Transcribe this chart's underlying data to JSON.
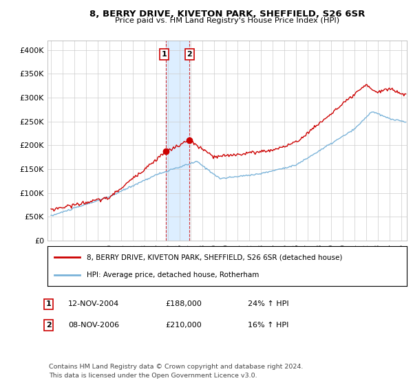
{
  "title": "8, BERRY DRIVE, KIVETON PARK, SHEFFIELD, S26 6SR",
  "subtitle": "Price paid vs. HM Land Registry's House Price Index (HPI)",
  "hpi_color": "#7ab3d9",
  "price_color": "#cc0000",
  "highlight_color": "#ddeeff",
  "sale1_date": "12-NOV-2004",
  "sale1_price": 188000,
  "sale1_hpi_pct": "24%",
  "sale2_date": "08-NOV-2006",
  "sale2_price": 210000,
  "sale2_hpi_pct": "16%",
  "legend_label1": "8, BERRY DRIVE, KIVETON PARK, SHEFFIELD, S26 6SR (detached house)",
  "legend_label2": "HPI: Average price, detached house, Rotherham",
  "footer": "Contains HM Land Registry data © Crown copyright and database right 2024.\nThis data is licensed under the Open Government Licence v3.0.",
  "ylim": [
    0,
    420000
  ],
  "yticks": [
    0,
    50000,
    100000,
    150000,
    200000,
    250000,
    300000,
    350000,
    400000
  ],
  "ytick_labels": [
    "£0",
    "£50K",
    "£100K",
    "£150K",
    "£200K",
    "£250K",
    "£300K",
    "£350K",
    "£400K"
  ],
  "xlim_left": 1994.7,
  "xlim_right": 2025.5
}
